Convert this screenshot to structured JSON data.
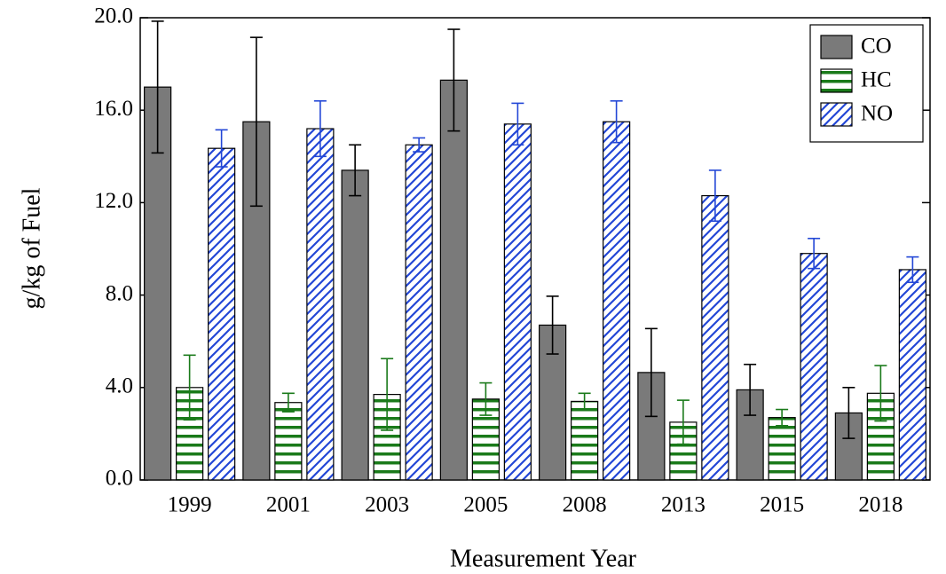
{
  "chart_data": {
    "type": "bar",
    "x_label": "Measurement Year",
    "y_label": "g/kg of Fuel",
    "categories": [
      "1999",
      "2001",
      "2003",
      "2005",
      "2008",
      "2013",
      "2015",
      "2018"
    ],
    "series": [
      {
        "name": "CO",
        "color": "#7a7a7a",
        "error_color": "#000000",
        "hatch": "solid",
        "values": [
          17.0,
          15.5,
          13.4,
          17.3,
          6.7,
          4.65,
          3.9,
          2.9
        ],
        "errors": [
          2.85,
          3.65,
          1.1,
          2.2,
          1.25,
          1.9,
          1.1,
          1.1
        ]
      },
      {
        "name": "HC",
        "color": "#1a7a1a",
        "error_color": "#1a7a1a",
        "hatch": "horizontal",
        "values": [
          4.0,
          3.35,
          3.7,
          3.5,
          3.4,
          2.5,
          2.7,
          3.75
        ],
        "errors": [
          1.4,
          0.4,
          1.55,
          0.7,
          0.35,
          0.95,
          0.35,
          1.2
        ]
      },
      {
        "name": "NO",
        "color": "#2347d6",
        "error_color": "#2347d6",
        "hatch": "diagonal",
        "values": [
          14.35,
          15.2,
          14.5,
          15.4,
          15.5,
          12.3,
          9.8,
          9.1
        ],
        "errors": [
          0.8,
          1.2,
          0.3,
          0.9,
          0.9,
          1.1,
          0.65,
          0.55
        ]
      }
    ],
    "ylim": [
      0,
      20
    ],
    "yticks": [
      {
        "value": 0,
        "label": "0.0"
      },
      {
        "value": 4,
        "label": "4.0"
      },
      {
        "value": 8,
        "label": "8.0"
      },
      {
        "value": 12,
        "label": "12.0"
      },
      {
        "value": 16,
        "label": "16.0"
      },
      {
        "value": 20,
        "label": "20.0"
      }
    ],
    "legend": "top-right"
  }
}
